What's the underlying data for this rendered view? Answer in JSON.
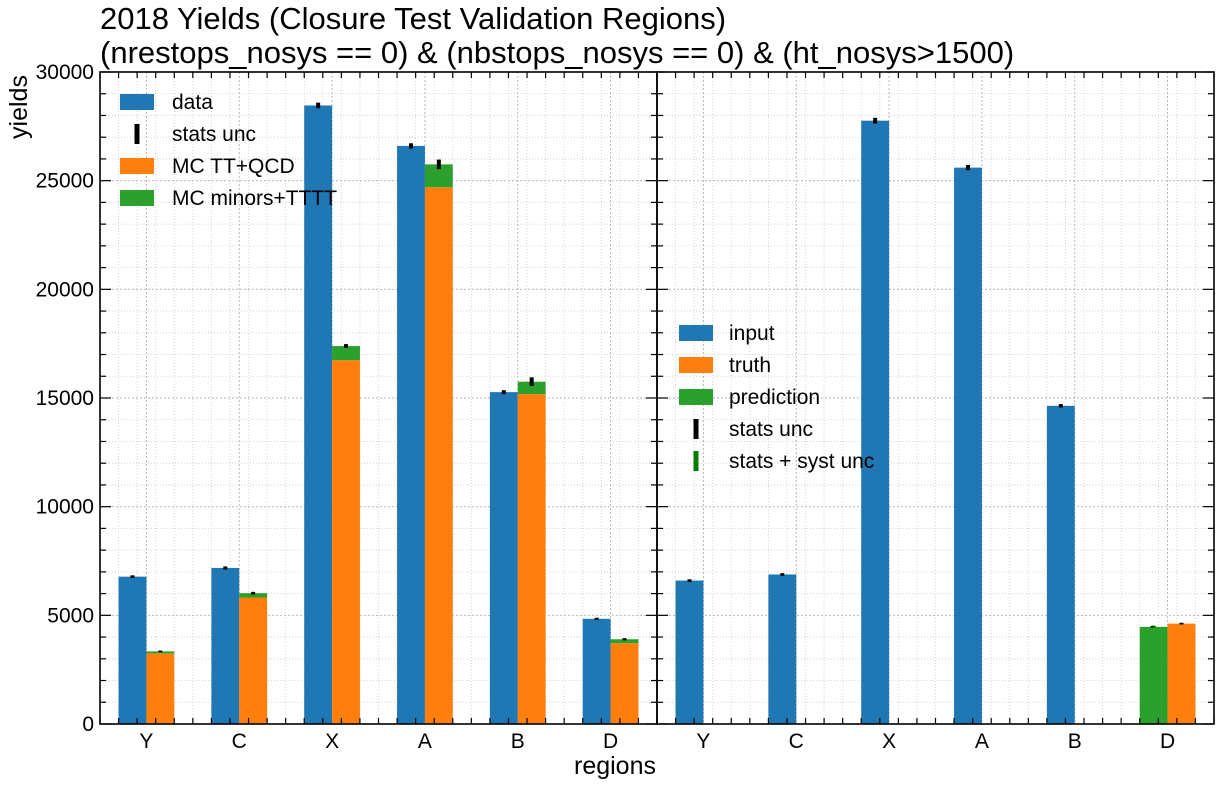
{
  "chart_data": {
    "type": "bar",
    "title_line1": "2018 Yields (Closure Test Validation Regions)",
    "title_line2": "(nrestops_nosys == 0) & (nbstops_nosys == 0) & (ht_nosys>1500)",
    "xlabel": "regions",
    "ylabel": "yields",
    "ylim": [
      0,
      30000
    ],
    "yticks": [
      "0",
      "5000",
      "10000",
      "15000",
      "20000",
      "25000",
      "30000"
    ],
    "grid": true,
    "categories": [
      "Y",
      "C",
      "X",
      "A",
      "B",
      "D"
    ],
    "panels": [
      {
        "legend_position": "top-left",
        "legend": [
          "data",
          "stats unc",
          "MC TT+QCD",
          "MC minors+TTTT"
        ],
        "series": [
          {
            "name": "data",
            "color": "#1f77b4",
            "values": [
              6780,
              7180,
              28460,
              26600,
              15270,
              4840
            ],
            "errors": [
              60,
              70,
              130,
              120,
              90,
              50
            ]
          },
          {
            "name": "MC TT+QCD",
            "color": "#ff7f0e",
            "values": [
              3250,
              5820,
              16740,
              24700,
              15180,
              3720
            ],
            "errors": [
              0,
              0,
              0,
              0,
              0,
              0
            ]
          },
          {
            "name": "MC minors+TTTT",
            "color": "#2ca02c",
            "values": [
              90,
              200,
              650,
              1050,
              570,
              180
            ],
            "errors": [
              40,
              60,
              90,
              220,
              200,
              50
            ]
          }
        ]
      },
      {
        "legend_position": "center-left",
        "legend": [
          "input",
          "truth",
          "prediction",
          "stats unc",
          "stats + syst unc"
        ],
        "series": [
          {
            "name": "input",
            "color": "#1f77b4",
            "values": [
              6600,
              6880,
              27760,
              25600,
              14640,
              null
            ],
            "errors": [
              60,
              60,
              130,
              120,
              80,
              0
            ]
          },
          {
            "name": "truth",
            "color": "#ff7f0e",
            "values": [
              null,
              null,
              null,
              null,
              null,
              4620
            ],
            "errors": [
              0,
              0,
              0,
              0,
              0,
              40
            ]
          },
          {
            "name": "prediction",
            "color": "#2ca02c",
            "values": [
              null,
              null,
              null,
              null,
              null,
              4470
            ],
            "errors": [
              0,
              0,
              0,
              0,
              0,
              60
            ]
          }
        ],
        "unc_colors": {
          "stats": "#000000",
          "stats_syst": "#008000"
        }
      }
    ]
  }
}
